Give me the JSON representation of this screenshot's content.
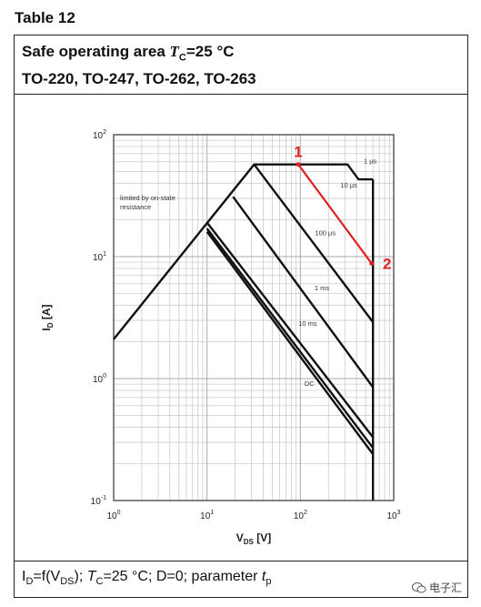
{
  "table_label": "Table 12",
  "header": {
    "line1_prefix": "Safe operating area ",
    "tc_symbol": "T",
    "tc_sub": "C",
    "line1_suffix": "=25 °C",
    "line2": "TO-220, TO-247, TO-262, TO-263"
  },
  "footer": {
    "id": "I",
    "id_sub": "D",
    "eq": "=f(V",
    "vds_sub": "DS",
    "mid": "); ",
    "tc": "T",
    "tc_sub": "C",
    "rest": "=25 °C; D=0; parameter ",
    "tp": "t",
    "tp_sub": "p"
  },
  "watermark": {
    "text": "电子汇",
    "icon": "wechat-icon"
  },
  "chart_data": {
    "type": "line",
    "x_scale": "log",
    "y_scale": "log",
    "xlim": [
      1,
      1000
    ],
    "ylim": [
      0.1,
      100
    ],
    "xlabel": "V_DS [V]",
    "xlabel_main": "V",
    "xlabel_sub": "DS",
    "xlabel_unit": "[V]",
    "ylabel": "I_D [A]",
    "ylabel_main": "I",
    "ylabel_sub": "D",
    "ylabel_unit": "[A]",
    "grid": true,
    "x_ticks": [
      {
        "value": 1,
        "base": "10",
        "exp": "0"
      },
      {
        "value": 10,
        "base": "10",
        "exp": "1"
      },
      {
        "value": 100,
        "base": "10",
        "exp": "2"
      },
      {
        "value": 1000,
        "base": "10",
        "exp": "3"
      }
    ],
    "y_ticks": [
      {
        "value": 0.1,
        "base": "10",
        "exp": "-1"
      },
      {
        "value": 1,
        "base": "10",
        "exp": "0"
      },
      {
        "value": 10,
        "base": "10",
        "exp": "1"
      },
      {
        "value": 100,
        "base": "10",
        "exp": "2"
      }
    ],
    "annotation_limited": [
      "limited by on-state",
      "resistance"
    ],
    "series": [
      {
        "name": "1 µs",
        "points": [
          [
            1,
            2.1
          ],
          [
            32,
            57
          ],
          [
            320,
            57
          ],
          [
            420,
            43
          ],
          [
            600,
            43
          ]
        ]
      },
      {
        "name": "10 µs",
        "points": [
          [
            32,
            57
          ],
          [
            600,
            2.9
          ]
        ]
      },
      {
        "name": "100 µs",
        "points": [
          [
            19,
            31
          ],
          [
            600,
            0.85
          ]
        ]
      },
      {
        "name": "1 ms",
        "points": [
          [
            10,
            19
          ],
          [
            600,
            0.33
          ]
        ]
      },
      {
        "name": "10 ms",
        "points": [
          [
            10,
            17
          ],
          [
            600,
            0.27
          ]
        ]
      },
      {
        "name": "DC",
        "points": [
          [
            10,
            16
          ],
          [
            600,
            0.24
          ]
        ]
      },
      {
        "name": "",
        "points": [
          [
            600,
            43
          ],
          [
            600,
            0.1
          ]
        ]
      }
    ],
    "series_labels": [
      {
        "text": "1 µs",
        "x": 560,
        "y": 58
      },
      {
        "text": "10 µs",
        "x": 330,
        "y": 37
      },
      {
        "text": "100 µs",
        "x": 185,
        "y": 15
      },
      {
        "text": "1 ms",
        "x": 170,
        "y": 5.3
      },
      {
        "text": "10 ms",
        "x": 120,
        "y": 2.7
      },
      {
        "text": "DC",
        "x": 125,
        "y": 0.87
      }
    ],
    "red_marker": {
      "color": "#e02020",
      "segment": [
        [
          95,
          57
        ],
        [
          580,
          8.8
        ]
      ],
      "labels": [
        {
          "text": "1",
          "x": 95,
          "y": 57
        },
        {
          "text": "2",
          "x": 580,
          "y": 8.8
        }
      ]
    }
  }
}
